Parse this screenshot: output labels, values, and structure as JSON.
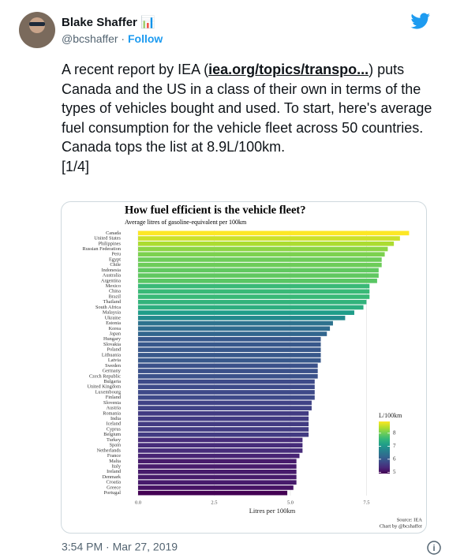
{
  "author": {
    "name": "Blake Shaffer 📊",
    "handle": "@bcshaffer",
    "follow": "Follow"
  },
  "text": {
    "before": "A recent report by IEA (",
    "link": "iea.org/topics/transpo...",
    "after": ") puts Canada and the US in a class of their own in terms of the types of vehicles bought and used. To start, here's average fuel consumption for the vehicle fleet across 50 countries. Canada tops the list at 8.9L/100km.",
    "counter": "[1/4]"
  },
  "timestamp": "3:54 PM · Mar 27, 2019",
  "chart_data": {
    "type": "bar",
    "orientation": "horizontal",
    "title": "How fuel efficient is the vehicle fleet?",
    "subtitle": "Average litres of gasoline-equivalent per 100km",
    "x_label": "Litres per 100km",
    "source": "Source: IEA",
    "credit": "Chart by @bcshaffer",
    "categories": [
      "Canada",
      "United States",
      "Philippines",
      "Russian Federation",
      "Peru",
      "Egypt",
      "Chile",
      "Indonesia",
      "Australia",
      "Argentina",
      "Mexico",
      "China",
      "Brazil",
      "Thailand",
      "South Africa",
      "Malaysia",
      "Ukraine",
      "Estonia",
      "Korea",
      "Japan",
      "Hungary",
      "Slovakia",
      "Poland",
      "Lithuania",
      "Latvia",
      "Sweden",
      "Germany",
      "Czech Republic",
      "Bulgaria",
      "United Kingdom",
      "Luxembourg",
      "Finland",
      "Slovenia",
      "Austria",
      "Romania",
      "India",
      "Iceland",
      "Cyprus",
      "Belgium",
      "Turkey",
      "Spain",
      "Netherlands",
      "France",
      "Malta",
      "Italy",
      "Ireland",
      "Denmark",
      "Croatia",
      "Greece",
      "Portugal"
    ],
    "values": [
      8.9,
      8.6,
      8.4,
      8.2,
      8.1,
      8.0,
      8.0,
      7.9,
      7.9,
      7.85,
      7.6,
      7.6,
      7.6,
      7.5,
      7.4,
      7.1,
      6.8,
      6.4,
      6.3,
      6.2,
      6.0,
      6.0,
      6.0,
      6.0,
      6.0,
      5.9,
      5.9,
      5.9,
      5.8,
      5.8,
      5.8,
      5.8,
      5.7,
      5.7,
      5.6,
      5.6,
      5.6,
      5.6,
      5.6,
      5.4,
      5.4,
      5.4,
      5.3,
      5.2,
      5.2,
      5.2,
      5.2,
      5.2,
      5.1,
      4.9
    ],
    "xlim": [
      0,
      9.2
    ],
    "xticks": [
      {
        "value": 0,
        "label": "0.0"
      },
      {
        "value": 2.5,
        "label": "2.5"
      },
      {
        "value": 5,
        "label": "5.0"
      },
      {
        "value": 7.5,
        "label": "7.5"
      }
    ],
    "grid": true,
    "colormap": [
      "#440154",
      "#482878",
      "#3e4989",
      "#31688e",
      "#26828e",
      "#1f9e89",
      "#35b779",
      "#6ece58",
      "#b5de2b",
      "#fde725"
    ],
    "colorbar": {
      "title": "L/100km",
      "lim": [
        4.9,
        8.9
      ],
      "ticks": [
        5,
        6,
        7,
        8
      ]
    }
  }
}
